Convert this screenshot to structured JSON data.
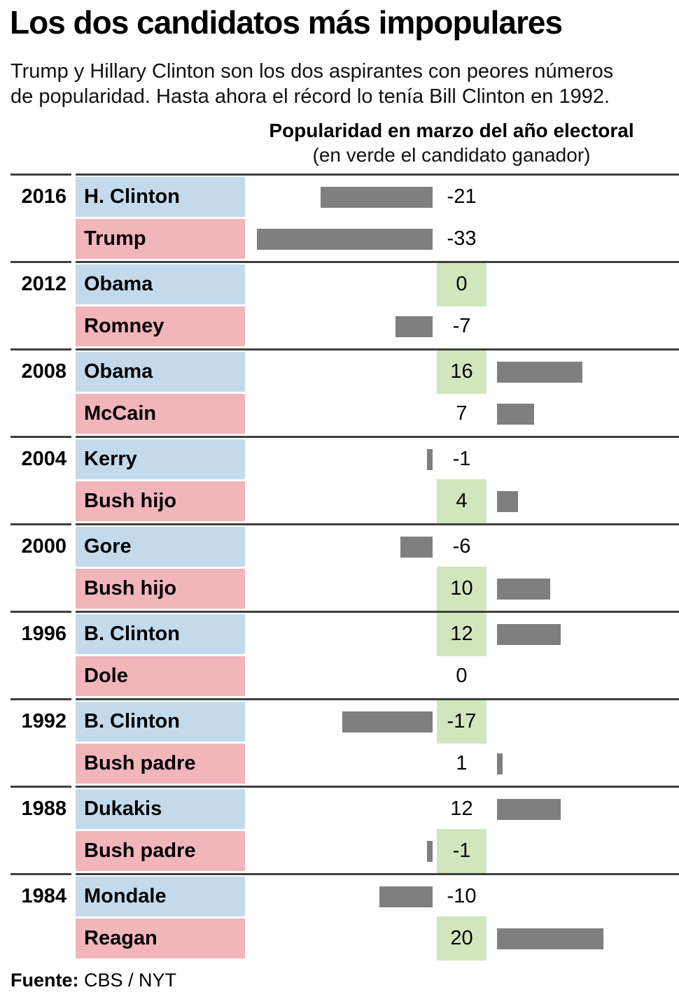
{
  "header": {
    "title": "Los dos candidatos más impopulares",
    "subtitle_line1": "Trump y Hillary Clinton son los dos aspirantes con peores números",
    "subtitle_line2": "de popularidad. Hasta ahora el récord lo tenía Bill Clinton en 1992."
  },
  "chart_data": {
    "type": "bar",
    "title": "Popularidad en marzo del año electoral",
    "subtitle": "(en verde el candidato ganador)",
    "orientation": "horizontal",
    "xlim": [
      -33,
      20
    ],
    "value_zero_at_label_column": true,
    "highlight_meaning": "green label background marks the election winner",
    "sections": [
      {
        "year": "2016",
        "rows": [
          {
            "name": "H. Clinton",
            "bg": "blue",
            "value": -21,
            "label": "-21",
            "winner": false
          },
          {
            "name": "Trump",
            "bg": "pink",
            "value": -33,
            "label": "-33",
            "winner": false
          }
        ]
      },
      {
        "year": "2012",
        "rows": [
          {
            "name": "Obama",
            "bg": "blue",
            "value": 0,
            "label": "0",
            "winner": true
          },
          {
            "name": "Romney",
            "bg": "pink",
            "value": -7,
            "label": "-7",
            "winner": false
          }
        ]
      },
      {
        "year": "2008",
        "rows": [
          {
            "name": "Obama",
            "bg": "blue",
            "value": 16,
            "label": "16",
            "winner": true
          },
          {
            "name": "McCain",
            "bg": "pink",
            "value": 7,
            "label": "7",
            "winner": false
          }
        ]
      },
      {
        "year": "2004",
        "rows": [
          {
            "name": "Kerry",
            "bg": "blue",
            "value": -1,
            "label": "-1",
            "winner": false
          },
          {
            "name": "Bush hijo",
            "bg": "pink",
            "value": 4,
            "label": "4",
            "winner": true
          }
        ]
      },
      {
        "year": "2000",
        "rows": [
          {
            "name": "Gore",
            "bg": "blue",
            "value": -6,
            "label": "-6",
            "winner": false
          },
          {
            "name": "Bush hijo",
            "bg": "pink",
            "value": 10,
            "label": "10",
            "winner": true
          }
        ]
      },
      {
        "year": "1996",
        "rows": [
          {
            "name": "B. Clinton",
            "bg": "blue",
            "value": 12,
            "label": "12",
            "winner": true
          },
          {
            "name": "Dole",
            "bg": "pink",
            "value": 0,
            "label": "0",
            "winner": false
          }
        ]
      },
      {
        "year": "1992",
        "rows": [
          {
            "name": "B. Clinton",
            "bg": "blue",
            "value": -17,
            "label": "-17",
            "winner": true
          },
          {
            "name": "Bush padre",
            "bg": "pink",
            "value": 1,
            "label": "1",
            "winner": false
          }
        ]
      },
      {
        "year": "1988",
        "rows": [
          {
            "name": "Dukakis",
            "bg": "blue",
            "value": 12,
            "label": "12",
            "winner": false
          },
          {
            "name": "Bush padre",
            "bg": "pink",
            "value": -1,
            "label": "-1",
            "winner": true
          }
        ]
      },
      {
        "year": "1984",
        "rows": [
          {
            "name": "Mondale",
            "bg": "blue",
            "value": -10,
            "label": "-10",
            "winner": false
          },
          {
            "name": "Reagan",
            "bg": "pink",
            "value": 20,
            "label": "20",
            "winner": true
          }
        ]
      }
    ]
  },
  "colors": {
    "democrat_blue": "#c3daec",
    "republican_pink": "#f1b5ba",
    "winner_green": "#d2e6bd",
    "bar_gray": "#7f7f7f",
    "divider_gray": "#3f3f3f",
    "background": "#ffffff"
  },
  "footer": {
    "source_label": "Fuente:",
    "source_value": "CBS / NYT"
  }
}
